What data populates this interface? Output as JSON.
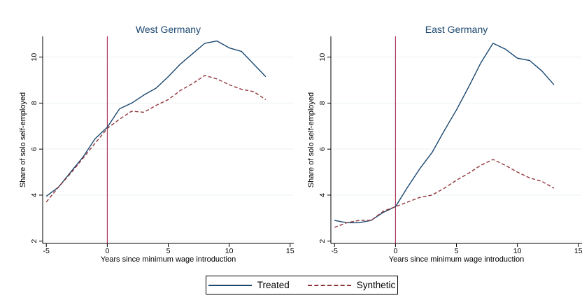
{
  "chart_data": [
    {
      "type": "line",
      "title": "West Germany",
      "xlabel": "Years since minimum wage introduction",
      "ylabel": "Share of solo self-employed",
      "xlim": [
        -5.3,
        15.3
      ],
      "ylim": [
        1.9,
        10.9
      ],
      "xticks": [
        -5,
        0,
        5,
        10,
        15
      ],
      "yticks": [
        2,
        4,
        6,
        8,
        10
      ],
      "vline_x": 0,
      "grid": "horizontal",
      "series": [
        {
          "name": "Treated",
          "color": "#1a476f",
          "style": "solid",
          "x": [
            -5,
            -4,
            -3,
            -2,
            -1,
            0,
            1,
            2,
            3,
            4,
            5,
            6,
            7,
            8,
            9,
            10,
            11,
            12,
            13
          ],
          "values": [
            3.95,
            4.35,
            5.0,
            5.65,
            6.45,
            6.95,
            7.75,
            8.0,
            8.35,
            8.65,
            9.15,
            9.7,
            10.15,
            10.6,
            10.7,
            10.4,
            10.25,
            9.7,
            9.15
          ]
        },
        {
          "name": "Synthetic",
          "color": "#90353b",
          "style": "dashed",
          "x": [
            -5,
            -4,
            -3,
            -2,
            -1,
            0,
            1,
            2,
            3,
            4,
            5,
            6,
            7,
            8,
            9,
            10,
            11,
            12,
            13
          ],
          "values": [
            3.7,
            4.35,
            4.95,
            5.6,
            6.25,
            6.9,
            7.3,
            7.65,
            7.6,
            7.9,
            8.15,
            8.55,
            8.85,
            9.2,
            9.05,
            8.8,
            8.6,
            8.5,
            8.15
          ]
        }
      ]
    },
    {
      "type": "line",
      "title": "East Germany",
      "xlabel": "Years since minimum wage introduction",
      "ylabel": "Share of solo self-employed",
      "xlim": [
        -5.3,
        15.3
      ],
      "ylim": [
        1.9,
        10.9
      ],
      "xticks": [
        -5,
        0,
        5,
        10,
        15
      ],
      "yticks": [
        2,
        4,
        6,
        8,
        10
      ],
      "vline_x": 0,
      "grid": "horizontal",
      "series": [
        {
          "name": "Treated",
          "color": "#1a476f",
          "style": "solid",
          "x": [
            -5,
            -4,
            -3,
            -2,
            -1,
            0,
            1,
            2,
            3,
            4,
            5,
            6,
            7,
            8,
            9,
            10,
            11,
            12,
            13
          ],
          "values": [
            2.9,
            2.8,
            2.8,
            2.9,
            3.25,
            3.5,
            4.35,
            5.15,
            5.85,
            6.8,
            7.7,
            8.7,
            9.75,
            10.6,
            10.35,
            9.95,
            9.85,
            9.4,
            8.8
          ]
        },
        {
          "name": "Synthetic",
          "color": "#90353b",
          "style": "dashed",
          "x": [
            -5,
            -4,
            -3,
            -2,
            -1,
            0,
            1,
            2,
            3,
            4,
            5,
            6,
            7,
            8,
            9,
            10,
            11,
            12,
            13
          ],
          "values": [
            2.6,
            2.8,
            2.9,
            2.9,
            3.3,
            3.5,
            3.7,
            3.9,
            4.0,
            4.3,
            4.65,
            4.95,
            5.3,
            5.55,
            5.3,
            5.0,
            4.75,
            4.6,
            4.3
          ]
        }
      ]
    }
  ],
  "legend": {
    "entries": [
      {
        "label": "Treated",
        "style": "solid",
        "color": "#1a476f"
      },
      {
        "label": "Synthetic",
        "style": "dashed",
        "color": "#90353b"
      }
    ],
    "placement": "bottom-center"
  }
}
